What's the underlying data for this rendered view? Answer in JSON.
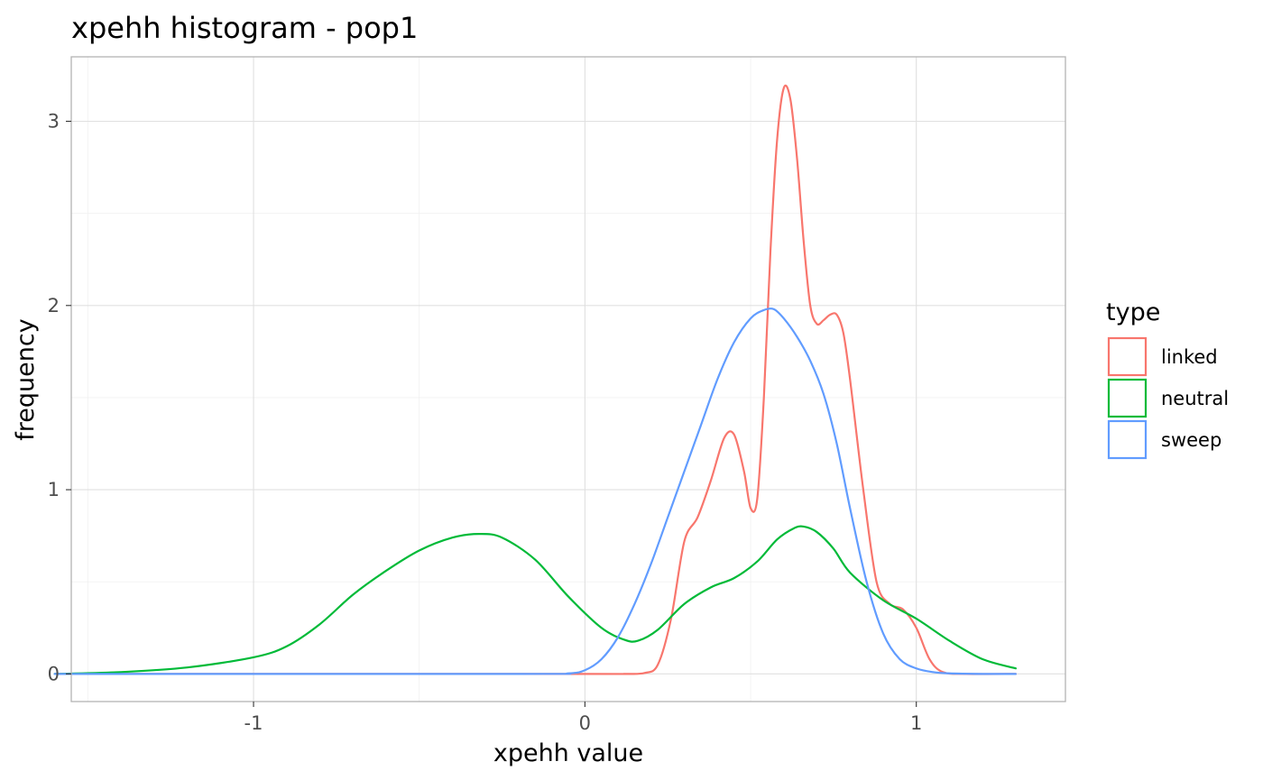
{
  "chart_data": {
    "type": "line",
    "title": "xpehh histogram - pop1",
    "xlabel": "xpehh value",
    "ylabel": "frequency",
    "xlim": [
      -1.55,
      1.45
    ],
    "ylim": [
      -0.15,
      3.35
    ],
    "x_ticks": [
      -1,
      0,
      1
    ],
    "x_tick_labels": [
      "-1",
      "0",
      "1"
    ],
    "y_ticks": [
      0,
      1,
      2,
      3
    ],
    "y_tick_labels": [
      "0",
      "1",
      "2",
      "3"
    ],
    "grid": true,
    "legend": {
      "title": "type",
      "position": "right"
    },
    "series": [
      {
        "name": "linked",
        "color": "#F8766D",
        "x": [
          -1.6,
          0.0,
          0.12,
          0.18,
          0.22,
          0.26,
          0.3,
          0.34,
          0.38,
          0.42,
          0.45,
          0.48,
          0.5,
          0.52,
          0.54,
          0.56,
          0.58,
          0.6,
          0.62,
          0.64,
          0.66,
          0.68,
          0.7,
          0.72,
          0.74,
          0.76,
          0.78,
          0.8,
          0.84,
          0.88,
          0.92,
          0.96,
          1.0,
          1.04,
          1.08,
          1.15,
          1.3
        ],
        "y": [
          0.0,
          0.0,
          0.0,
          0.005,
          0.05,
          0.3,
          0.72,
          0.85,
          1.05,
          1.28,
          1.3,
          1.1,
          0.9,
          0.95,
          1.5,
          2.3,
          2.9,
          3.18,
          3.12,
          2.8,
          2.35,
          2.0,
          1.9,
          1.92,
          1.95,
          1.95,
          1.85,
          1.6,
          1.0,
          0.5,
          0.38,
          0.35,
          0.25,
          0.08,
          0.01,
          0.0,
          0.0
        ]
      },
      {
        "name": "neutral",
        "color": "#00BA38",
        "x": [
          -1.6,
          -1.4,
          -1.2,
          -1.0,
          -0.9,
          -0.8,
          -0.7,
          -0.6,
          -0.5,
          -0.4,
          -0.32,
          -0.25,
          -0.15,
          -0.05,
          0.05,
          0.12,
          0.16,
          0.22,
          0.3,
          0.38,
          0.45,
          0.52,
          0.58,
          0.63,
          0.66,
          0.7,
          0.75,
          0.8,
          0.9,
          1.0,
          1.1,
          1.2,
          1.3
        ],
        "y": [
          0.0,
          0.01,
          0.035,
          0.09,
          0.15,
          0.27,
          0.43,
          0.56,
          0.67,
          0.74,
          0.76,
          0.74,
          0.62,
          0.42,
          0.25,
          0.185,
          0.18,
          0.24,
          0.38,
          0.47,
          0.52,
          0.61,
          0.73,
          0.79,
          0.8,
          0.77,
          0.68,
          0.55,
          0.4,
          0.3,
          0.18,
          0.08,
          0.03
        ]
      },
      {
        "name": "sweep",
        "color": "#619CFF",
        "x": [
          -1.6,
          -0.2,
          -0.05,
          0.0,
          0.05,
          0.1,
          0.15,
          0.2,
          0.25,
          0.3,
          0.35,
          0.4,
          0.45,
          0.5,
          0.54,
          0.57,
          0.6,
          0.64,
          0.68,
          0.72,
          0.76,
          0.8,
          0.85,
          0.9,
          0.95,
          1.0,
          1.05,
          1.1,
          1.2,
          1.3
        ],
        "y": [
          0.0,
          0.0,
          0.003,
          0.02,
          0.08,
          0.2,
          0.38,
          0.6,
          0.85,
          1.1,
          1.35,
          1.6,
          1.8,
          1.93,
          1.975,
          1.98,
          1.93,
          1.83,
          1.7,
          1.52,
          1.25,
          0.9,
          0.5,
          0.22,
          0.08,
          0.03,
          0.01,
          0.003,
          0.0,
          0.0
        ]
      }
    ]
  }
}
